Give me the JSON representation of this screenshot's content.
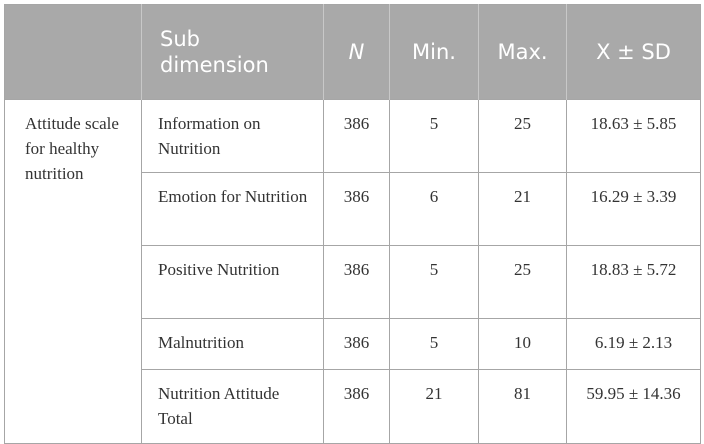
{
  "table": {
    "headers": {
      "blank": "",
      "sub": "Sub dimension",
      "n": "N",
      "min": "Min.",
      "max": "Max.",
      "mean_sd": "X ± SD"
    },
    "group_label": "Attitude scale for healthy nutrition",
    "rows": [
      {
        "name": "Information on Nutrition",
        "n": "386",
        "min": "5",
        "max": "25",
        "mean_sd": "18.63 ± 5.85"
      },
      {
        "name": "Emotion for Nutrition",
        "n": "386",
        "min": "6",
        "max": "21",
        "mean_sd": "16.29 ± 3.39"
      },
      {
        "name": "Positive Nutrition",
        "n": "386",
        "min": "5",
        "max": "25",
        "mean_sd": "18.83 ± 5.72"
      },
      {
        "name": "Malnutrition",
        "n": "386",
        "min": "5",
        "max": "10",
        "mean_sd": "6.19 ± 2.13"
      },
      {
        "name": "Nutrition Attitude Total",
        "n": "386",
        "min": "21",
        "max": "81",
        "mean_sd": "59.95 ± 14.36"
      }
    ]
  },
  "colors": {
    "header_bg": "#a9a9a9",
    "header_text": "#ffffff",
    "border": "#a6a6a6",
    "body_text": "#333333"
  }
}
